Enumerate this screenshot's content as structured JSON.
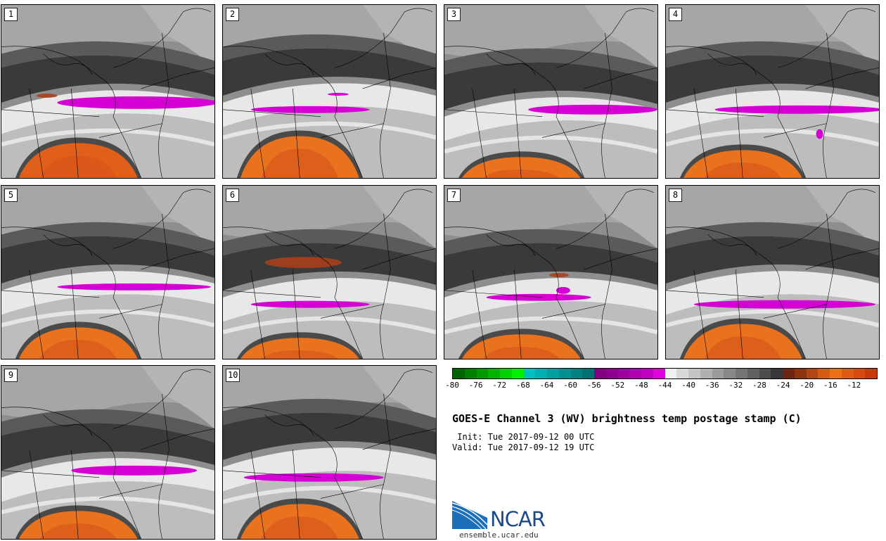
{
  "panels": [
    {
      "label": "1",
      "warm": "#e0601b"
    },
    {
      "label": "2",
      "warm": "#e9721e"
    },
    {
      "label": "3",
      "warm": "#e9721e"
    },
    {
      "label": "4",
      "warm": "#e9721e"
    },
    {
      "label": "5",
      "warm": "#e9721e"
    },
    {
      "label": "6",
      "warm": "#e9721e"
    },
    {
      "label": "7",
      "warm": "#e9721e"
    },
    {
      "label": "8",
      "warm": "#e9721e"
    },
    {
      "label": "9",
      "warm": "#e9721e"
    },
    {
      "label": "10",
      "warm": "#e9721e"
    }
  ],
  "colorbar": {
    "colors": [
      "#006400",
      "#008000",
      "#009a00",
      "#00b400",
      "#00d200",
      "#00f000",
      "#00c0c0",
      "#00b0b0",
      "#00a0a0",
      "#009090",
      "#008080",
      "#007070",
      "#800080",
      "#900090",
      "#a000a0",
      "#b000b0",
      "#c000c0",
      "#e000e0",
      "#f0f0f0",
      "#d8d8d8",
      "#c4c4c4",
      "#b0b0b0",
      "#9c9c9c",
      "#888888",
      "#747474",
      "#606060",
      "#4c4c4c",
      "#383838",
      "#6e2612",
      "#8c3410",
      "#b04612",
      "#d65a14",
      "#ee7018",
      "#e05a14",
      "#d84a10",
      "#c83a0c"
    ],
    "ticks": [
      "-80",
      "-76",
      "-72",
      "-68",
      "-64",
      "-60",
      "-56",
      "-52",
      "-48",
      "-44",
      "-40",
      "-36",
      "-32",
      "-28",
      "-24",
      "-20",
      "-16",
      "-12"
    ]
  },
  "title": "GOES-E Channel 3 (WV) brightness temp postage stamp (C)",
  "init": " Init: Tue 2017-09-12 00 UTC",
  "valid": "Valid: Tue 2017-09-12 19 UTC",
  "logo": {
    "text": "NCAR",
    "url": "ensemble.ucar.edu"
  }
}
